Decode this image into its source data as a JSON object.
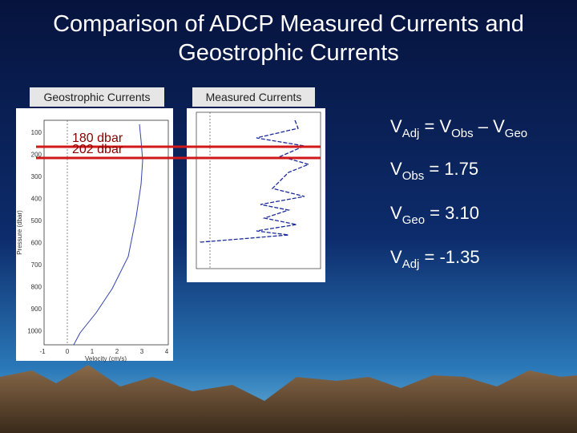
{
  "title": "Comparison of ADCP Measured Currents and Geostrophic Currents",
  "left_panel": {
    "label": "Geostrophic Currents",
    "yticks": [
      "100",
      "200",
      "300",
      "400",
      "500",
      "600",
      "700",
      "800",
      "900",
      "1000"
    ],
    "xticks": [
      "-1",
      "0",
      "1",
      "2",
      "3",
      "4"
    ],
    "ylabel": "Pressure (dbar)",
    "xlabel": "Velocity (cm/s)"
  },
  "right_panel": {
    "label": "Measured Currents"
  },
  "annotations": [
    "180 dbar",
    "202 dbar"
  ],
  "equations": [
    [
      {
        "text": "V"
      },
      {
        "text": "Adj",
        "sub": true
      },
      {
        "text": " = V"
      },
      {
        "text": "Obs",
        "sub": true
      },
      {
        "text": " – V"
      },
      {
        "text": "Geo",
        "sub": true
      }
    ],
    [
      {
        "text": "V"
      },
      {
        "text": "Obs",
        "sub": true
      },
      {
        "text": " = 1.75"
      }
    ],
    [
      {
        "text": "V"
      },
      {
        "text": "Geo",
        "sub": true
      },
      {
        "text": " = 3.10"
      }
    ],
    [
      {
        "text": "V"
      },
      {
        "text": "Adj",
        "sub": true
      },
      {
        "text": " = -1.35"
      }
    ]
  ]
}
